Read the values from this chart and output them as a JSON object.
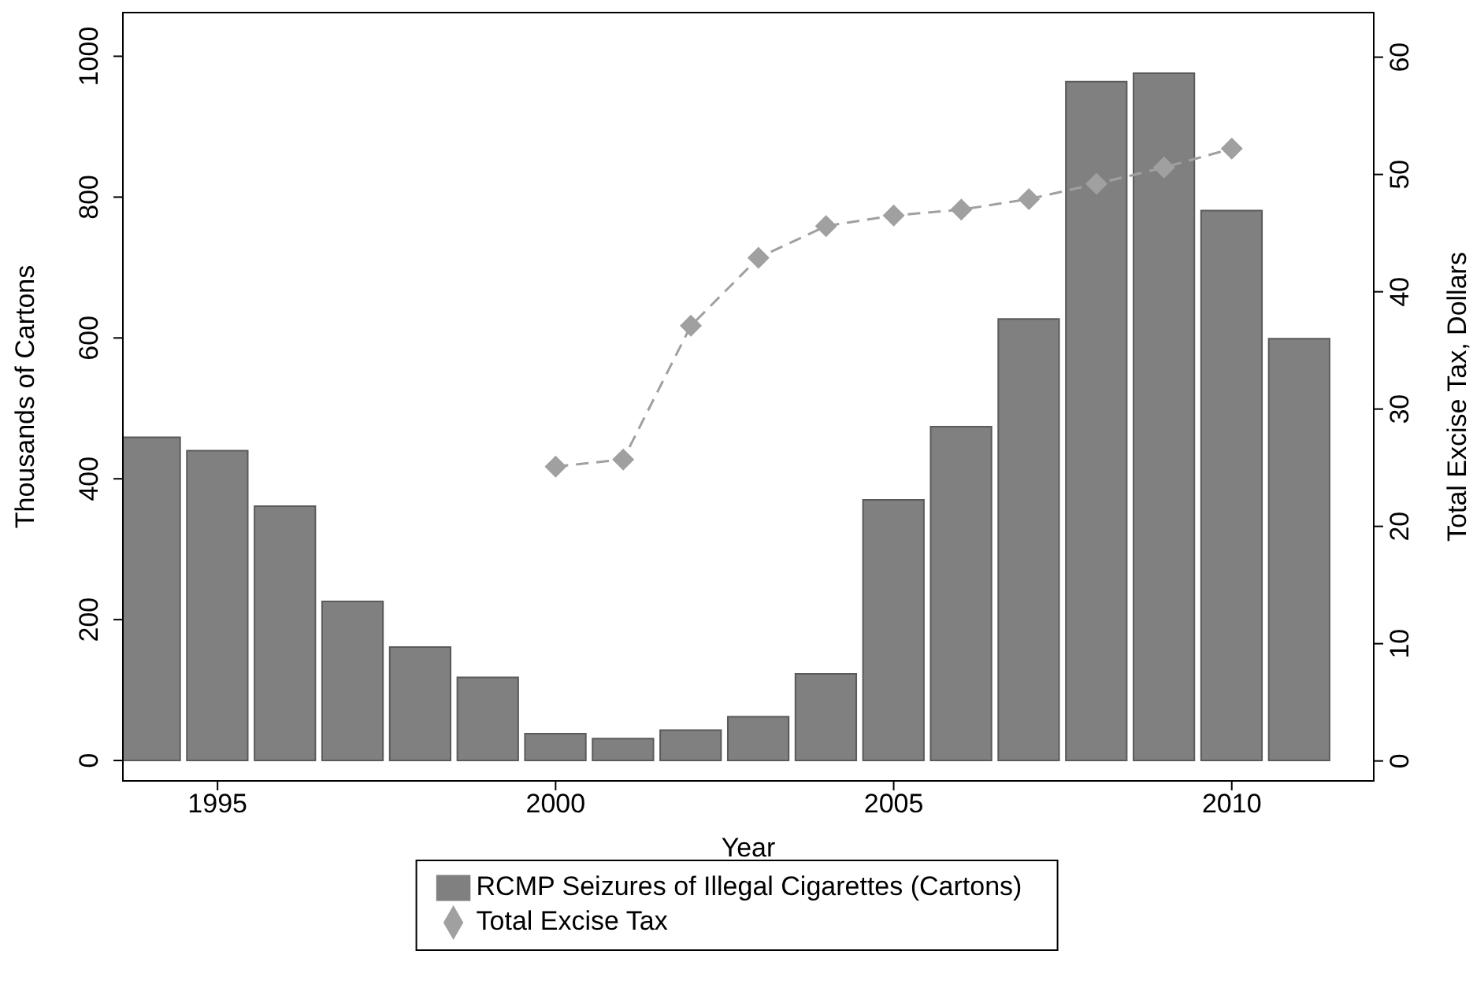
{
  "chart_data": {
    "type": "bar",
    "xlabel": "Year",
    "ylabel": "Thousands of Cartons",
    "y2label": "Total Excise Tax, Dollars",
    "x": [
      1994,
      1995,
      1996,
      1997,
      1998,
      1999,
      2000,
      2001,
      2002,
      2003,
      2004,
      2005,
      2006,
      2007,
      2008,
      2009,
      2010,
      2011
    ],
    "series": [
      {
        "name": "RCMP Seizures of Illegal Cigarettes (Cartons)",
        "color": "#808080",
        "values": [
          459,
          440,
          361,
          226,
          161,
          118,
          38,
          31,
          43,
          62,
          123,
          370,
          474,
          627,
          964,
          976,
          781,
          599
        ]
      },
      {
        "name": "Total Excise Tax",
        "type": "line",
        "axis": "y2",
        "color": "#a0a0a0",
        "marker": "diamond",
        "line_style": "dashed",
        "values": [
          null,
          null,
          null,
          null,
          null,
          null,
          25.1,
          25.7,
          37.1,
          42.9,
          45.6,
          46.5,
          47.0,
          47.9,
          49.2,
          50.6,
          52.2,
          null
        ]
      }
    ],
    "xlim": [
      1993.6,
      2012.1
    ],
    "xticks": [
      1995,
      2000,
      2005,
      2010
    ],
    "ylim": [
      -29,
      1062
    ],
    "yticks": [
      0,
      200,
      400,
      600,
      800,
      1000
    ],
    "y2lim": [
      -1.7,
      63.8
    ],
    "y2ticks": [
      0,
      10,
      20,
      30,
      40,
      50,
      60
    ],
    "grid": false,
    "legend": "bottom"
  }
}
